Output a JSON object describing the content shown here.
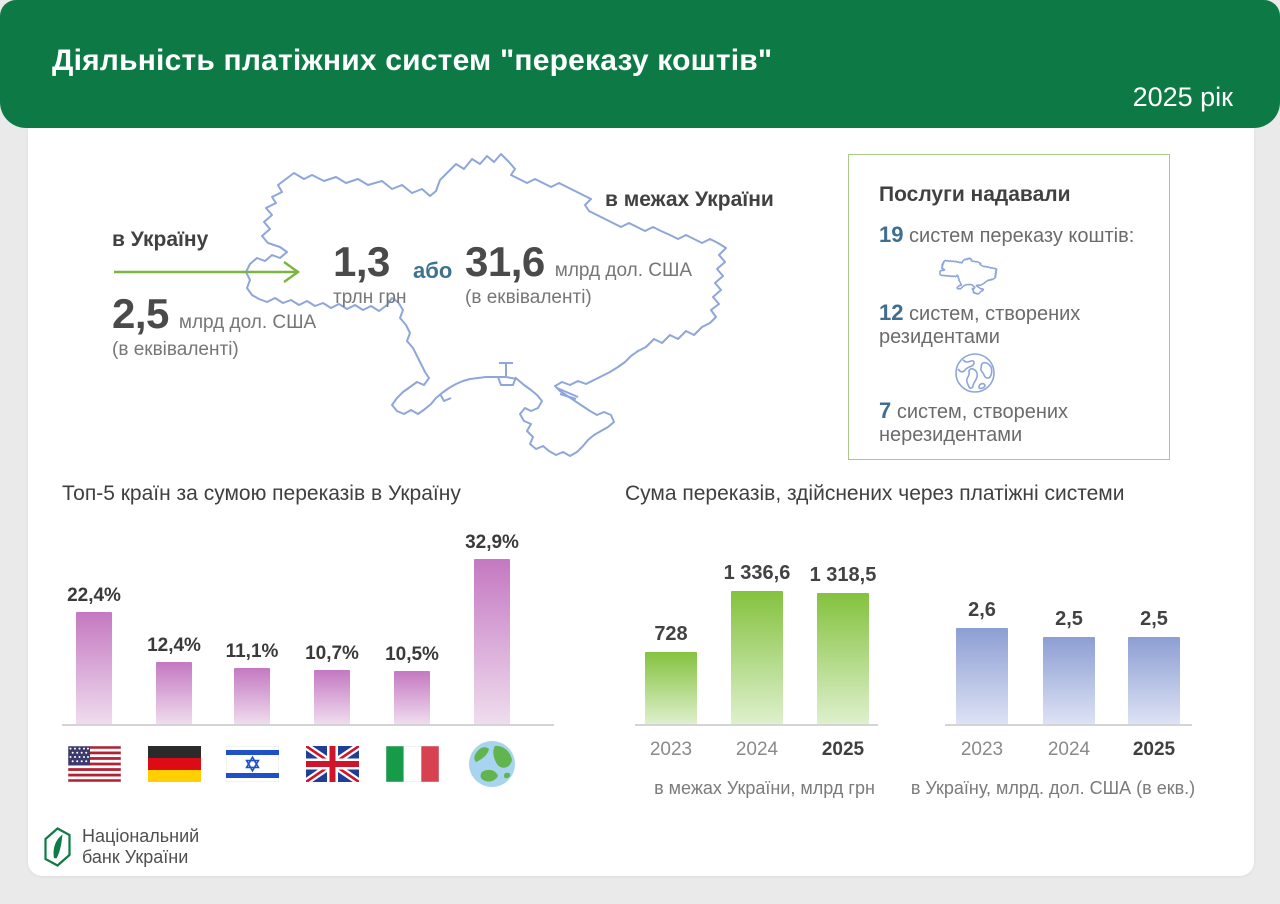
{
  "header": {
    "title": "Діяльність платіжних систем \"переказу коштів\"",
    "year": "2025 рік"
  },
  "map_section": {
    "inbound_label": "в Україну",
    "inbound_value": "2,5",
    "inbound_unit": "млрд дол. США",
    "inbound_note": "(в еквіваленті)",
    "domestic_label": "в межах України",
    "uah_value": "1,3",
    "uah_unit": "трлн грн",
    "or_word": "або",
    "usd_value": "31,6",
    "usd_unit": "млрд дол. США",
    "usd_note": "(в еквіваленті)"
  },
  "services_box": {
    "title": "Послуги надавали",
    "items": [
      {
        "count": "19",
        "label": "систем переказу коштів:",
        "icon": "none"
      },
      {
        "count": "12",
        "label": "систем, створених",
        "label2": "резидентами",
        "icon": "ukraine-map-icon"
      },
      {
        "count": "7",
        "label": "систем, створених",
        "label2": "нерезидентами",
        "icon": "globe-outline-icon"
      }
    ]
  },
  "chart_data": [
    {
      "type": "bar",
      "title": "Топ-5 країн за сумою переказів в Україну",
      "unit": "%",
      "categories": [
        "usa-flag",
        "germany-flag",
        "israel-flag",
        "uk-flag",
        "italy-flag",
        "globe-other-countries"
      ],
      "values": [
        22.4,
        12.4,
        11.1,
        10.7,
        10.5,
        32.9
      ],
      "value_labels": [
        "22,4%",
        "12,4%",
        "11,1%",
        "10,7%",
        "10,5%",
        "32,9%"
      ],
      "ylim": [
        0,
        38
      ],
      "grid": false,
      "bar_color_top": "#c478c1",
      "bar_color_bottom": "#efdcee"
    },
    {
      "type": "bar",
      "title": "Сума переказів, здійснених через платіжні системи",
      "categories": [
        "2023",
        "2024",
        "2025"
      ],
      "values": [
        728,
        1336.6,
        1318.5
      ],
      "value_labels": [
        "728",
        "1 336,6",
        "1 318,5"
      ],
      "caption": "в межах України, млрд грн",
      "ylim": [
        0,
        1500
      ],
      "grid": false,
      "bar_color_top": "#84c23e",
      "bar_color_bottom": "#def0cd"
    },
    {
      "type": "bar",
      "title": "Сума переказів, здійснених через платіжні системи",
      "categories": [
        "2023",
        "2024",
        "2025"
      ],
      "values": [
        2.6,
        2.5,
        2.5
      ],
      "value_labels": [
        "2,6",
        "2,5",
        "2,5"
      ],
      "caption": "в Україну, млрд. дол. США (в екв.)",
      "grid": false,
      "bar_color_top": "#8c9ed3",
      "bar_color_bottom": "#dde2f4"
    }
  ],
  "footer": {
    "bank_name_line1": "Національний",
    "bank_name_line2": "банк України"
  },
  "colors": {
    "header_green": "#0d7a46",
    "arrow_green": "#7cb342",
    "accent_blue": "#3e6e90",
    "map_outline": "#8ea6da",
    "box_border": "#adc98a"
  }
}
